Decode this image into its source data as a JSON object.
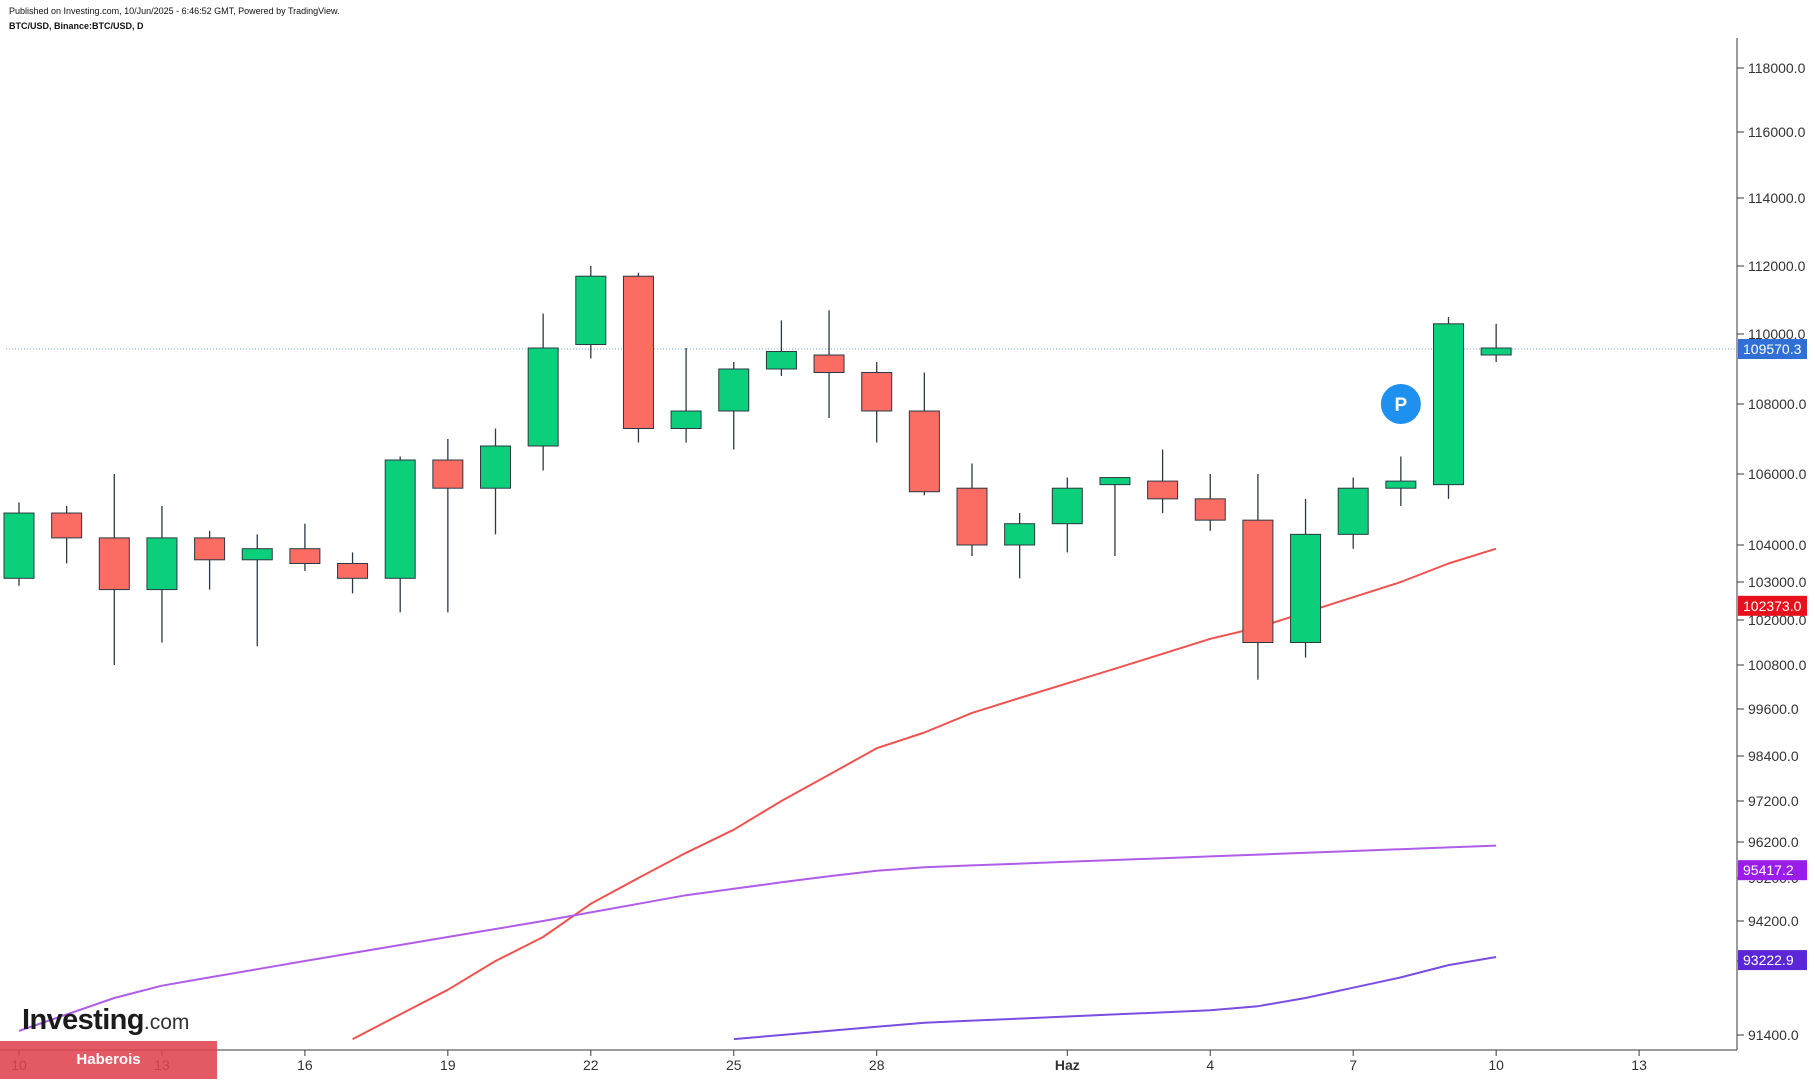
{
  "header": {
    "published": "Published on Investing.com, 10/Jun/2025 - 6:46:52 GMT, Powered by TradingView.",
    "symbol": "BTC/USD, Binance:BTC/USD, D"
  },
  "branding": {
    "logo_main": "Investing",
    "logo_domain": ".com",
    "badge": "Haberois"
  },
  "chart_data": {
    "type": "candlestick",
    "x_tick_labels": [
      {
        "label": "10",
        "day": 0
      },
      {
        "label": "13",
        "day": 3
      },
      {
        "label": "16",
        "day": 6
      },
      {
        "label": "19",
        "day": 9
      },
      {
        "label": "22",
        "day": 12
      },
      {
        "label": "25",
        "day": 15
      },
      {
        "label": "28",
        "day": 18
      },
      {
        "label": "Haz",
        "day": 22
      },
      {
        "label": "4",
        "day": 25
      },
      {
        "label": "7",
        "day": 28
      },
      {
        "label": "10",
        "day": 31
      },
      {
        "label": "13",
        "day": 34
      }
    ],
    "y_tick_labels": [
      "118000.0",
      "116000.0",
      "114000.0",
      "112000.0",
      "110000.0",
      "108000.0",
      "106000.0",
      "104000.0",
      "103000.0",
      "102000.0",
      "100800.0",
      "99600.0",
      "98400.0",
      "97200.0",
      "96200.0",
      "95200.0",
      "94200.0",
      "93200.0",
      "91400.0"
    ],
    "candles": [
      {
        "day": 0,
        "open": 103100,
        "high": 105200,
        "low": 102900,
        "close": 104900
      },
      {
        "day": 1,
        "open": 104900,
        "high": 105100,
        "low": 103500,
        "close": 104200
      },
      {
        "day": 2,
        "open": 104200,
        "high": 106000,
        "low": 100800,
        "close": 102800
      },
      {
        "day": 3,
        "open": 102800,
        "high": 105100,
        "low": 101400,
        "close": 104200
      },
      {
        "day": 4,
        "open": 104200,
        "high": 104400,
        "low": 102800,
        "close": 103600
      },
      {
        "day": 5,
        "open": 103600,
        "high": 104300,
        "low": 101300,
        "close": 103900
      },
      {
        "day": 6,
        "open": 103900,
        "high": 104600,
        "low": 103300,
        "close": 103500
      },
      {
        "day": 7,
        "open": 103500,
        "high": 103800,
        "low": 102700,
        "close": 103100
      },
      {
        "day": 8,
        "open": 103100,
        "high": 106500,
        "low": 102200,
        "close": 106400
      },
      {
        "day": 9,
        "open": 106400,
        "high": 107000,
        "low": 102200,
        "close": 105600
      },
      {
        "day": 10,
        "open": 105600,
        "high": 107300,
        "low": 104300,
        "close": 106800
      },
      {
        "day": 11,
        "open": 106800,
        "high": 110600,
        "low": 106100,
        "close": 109600
      },
      {
        "day": 12,
        "open": 109700,
        "high": 112000,
        "low": 109300,
        "close": 111700
      },
      {
        "day": 13,
        "open": 111700,
        "high": 111800,
        "low": 106900,
        "close": 107300
      },
      {
        "day": 14,
        "open": 107300,
        "high": 109600,
        "low": 106900,
        "close": 107800
      },
      {
        "day": 15,
        "open": 107800,
        "high": 109200,
        "low": 106700,
        "close": 109000
      },
      {
        "day": 16,
        "open": 109000,
        "high": 110400,
        "low": 108800,
        "close": 109500
      },
      {
        "day": 17,
        "open": 109400,
        "high": 110700,
        "low": 107600,
        "close": 108900
      },
      {
        "day": 18,
        "open": 108900,
        "high": 109200,
        "low": 106900,
        "close": 107800
      },
      {
        "day": 19,
        "open": 107800,
        "high": 108900,
        "low": 105400,
        "close": 105500
      },
      {
        "day": 20,
        "open": 105600,
        "high": 106300,
        "low": 103700,
        "close": 104000
      },
      {
        "day": 21,
        "open": 104000,
        "high": 104900,
        "low": 103100,
        "close": 104600
      },
      {
        "day": 22,
        "open": 104600,
        "high": 105900,
        "low": 103800,
        "close": 105600
      },
      {
        "day": 23,
        "open": 105700,
        "high": 105900,
        "low": 103700,
        "close": 105900
      },
      {
        "day": 24,
        "open": 105800,
        "high": 106700,
        "low": 104900,
        "close": 105300
      },
      {
        "day": 25,
        "open": 105300,
        "high": 106000,
        "low": 104400,
        "close": 104700
      },
      {
        "day": 26,
        "open": 104700,
        "high": 106000,
        "low": 100400,
        "close": 101400
      },
      {
        "day": 27,
        "open": 101400,
        "high": 105300,
        "low": 101000,
        "close": 104300
      },
      {
        "day": 28,
        "open": 104300,
        "high": 105900,
        "low": 103900,
        "close": 105600
      },
      {
        "day": 29,
        "open": 105600,
        "high": 106500,
        "low": 105100,
        "close": 105800
      },
      {
        "day": 30,
        "open": 105700,
        "high": 110500,
        "low": 105300,
        "close": 110300
      },
      {
        "day": 31,
        "open": 109400,
        "high": 110300,
        "low": 109200,
        "close": 109600
      }
    ],
    "price_labels": [
      {
        "value": "109570.3",
        "color": "#2f6fd6"
      },
      {
        "value": "102373.0",
        "color": "#e8101b"
      },
      {
        "value": "95417.2",
        "color": "#9b1dea"
      },
      {
        "value": "93222.9",
        "color": "#5a26d6"
      }
    ],
    "series": [
      {
        "color": "#ef5350",
        "values": [
          [
            7,
            91300
          ],
          [
            8,
            91900
          ],
          [
            9,
            92500
          ],
          [
            10,
            93200
          ],
          [
            11,
            93800
          ],
          [
            12,
            94600
          ],
          [
            13,
            95200
          ],
          [
            14,
            95900
          ],
          [
            15,
            96500
          ],
          [
            16,
            97200
          ],
          [
            17,
            97900
          ],
          [
            18,
            98600
          ],
          [
            19,
            99000
          ],
          [
            20,
            99500
          ],
          [
            21,
            99900
          ],
          [
            22,
            100300
          ],
          [
            23,
            100700
          ],
          [
            24,
            101100
          ],
          [
            25,
            101500
          ],
          [
            26,
            101800
          ],
          [
            27,
            102200
          ],
          [
            28,
            102600
          ],
          [
            29,
            103000
          ],
          [
            30,
            103500
          ],
          [
            31,
            103900
          ]
        ]
      },
      {
        "color": "#b05de8",
        "values": [
          [
            0,
            91500
          ],
          [
            1,
            91900
          ],
          [
            2,
            92300
          ],
          [
            3,
            92600
          ],
          [
            4,
            92800
          ],
          [
            5,
            93000
          ],
          [
            6,
            93200
          ],
          [
            7,
            93400
          ],
          [
            8,
            93600
          ],
          [
            9,
            93800
          ],
          [
            10,
            94000
          ],
          [
            11,
            94200
          ],
          [
            12,
            94400
          ],
          [
            13,
            94600
          ],
          [
            14,
            94800
          ],
          [
            15,
            94950
          ],
          [
            16,
            95100
          ],
          [
            17,
            95250
          ],
          [
            18,
            95400
          ],
          [
            19,
            95500
          ],
          [
            20,
            95550
          ],
          [
            21,
            95600
          ],
          [
            22,
            95650
          ],
          [
            23,
            95700
          ],
          [
            24,
            95750
          ],
          [
            25,
            95800
          ],
          [
            26,
            95850
          ],
          [
            27,
            95900
          ],
          [
            28,
            95950
          ],
          [
            29,
            96000
          ],
          [
            30,
            96050
          ],
          [
            31,
            96100
          ]
        ]
      },
      {
        "color": "#7a4ee0",
        "values": [
          [
            15,
            91300
          ],
          [
            16,
            91400
          ],
          [
            17,
            91500
          ],
          [
            18,
            91600
          ],
          [
            19,
            91700
          ],
          [
            20,
            91750
          ],
          [
            21,
            91800
          ],
          [
            22,
            91850
          ],
          [
            23,
            91900
          ],
          [
            24,
            91950
          ],
          [
            25,
            92000
          ],
          [
            26,
            92100
          ],
          [
            27,
            92300
          ],
          [
            28,
            92550
          ],
          [
            29,
            92800
          ],
          [
            30,
            93100
          ],
          [
            31,
            93300
          ]
        ]
      }
    ],
    "last_price": 109570.3,
    "marker": {
      "label": "P",
      "day": 29,
      "color": "#1e90f0",
      "price": 108000
    }
  }
}
